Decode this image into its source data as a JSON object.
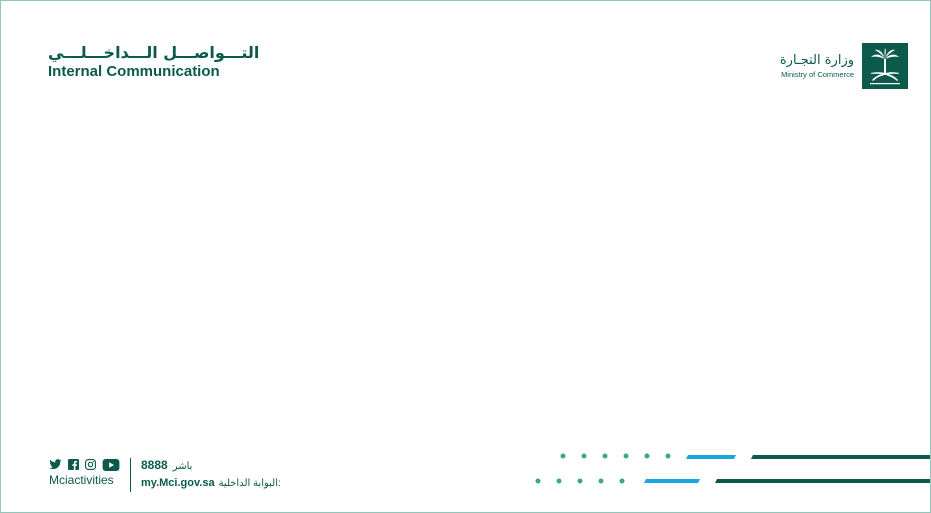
{
  "header": {
    "title_ar": "التـــواصـــل الـــداخـــلـــي",
    "title_en": "Internal Communication"
  },
  "ministry": {
    "name_ar": "وزارة التجـارة",
    "name_en": "Ministry of Commerce",
    "emblem_icon": "saudi-emblem-icon"
  },
  "footer": {
    "social_icons": [
      "twitter-icon",
      "facebook-icon",
      "instagram-icon",
      "youtube-icon"
    ],
    "handle": "Mciactivities",
    "bashir_label": "باشر",
    "bashir_number": "8888",
    "portal_label": "البوابة الداخلية:",
    "portal_url": "my.Mci.gov.sa"
  },
  "colors": {
    "primary_green": "#0b5a4b",
    "accent_teal": "#3aa888",
    "accent_blue": "#1aa7e0",
    "border": "#8cc9b6"
  }
}
